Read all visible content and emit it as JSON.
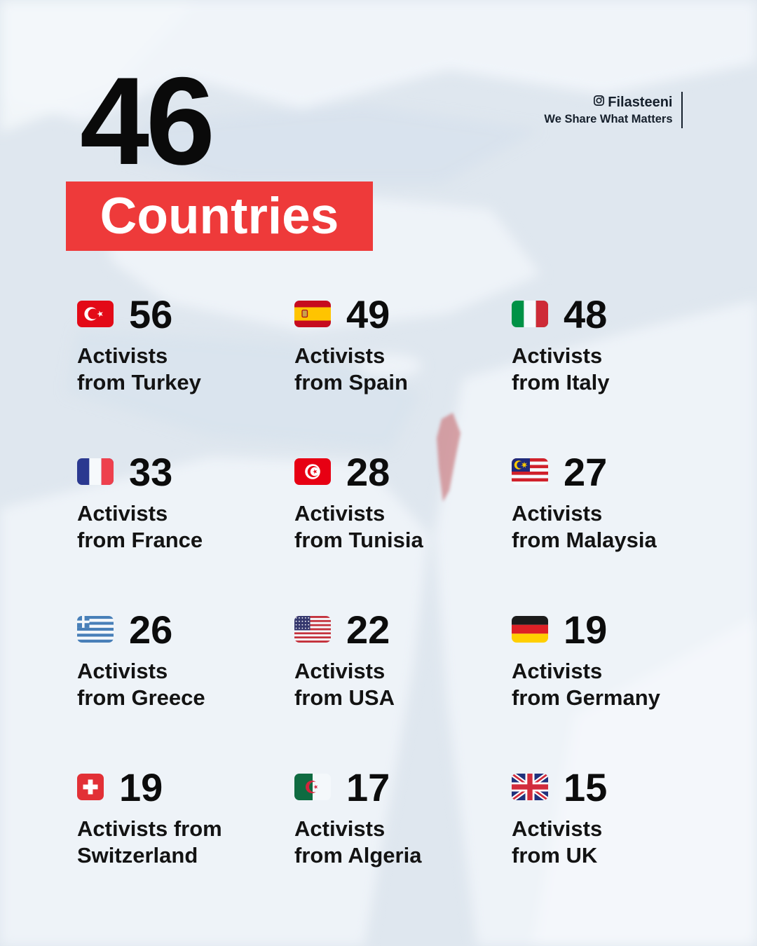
{
  "page": {
    "background_color": "#e0e8f0",
    "accent_red": "#ee3a3a",
    "palestine_highlight_color": "#cf8b90"
  },
  "header": {
    "count": "46",
    "title": "Countries"
  },
  "branding": {
    "handle": "Filasteeni",
    "tagline": "We Share What Matters"
  },
  "grid": {
    "items": [
      {
        "key": "turkey",
        "flag": "turkey-flag-icon",
        "count": "56",
        "lines": [
          "Activists",
          "from Turkey"
        ]
      },
      {
        "key": "spain",
        "flag": "spain-flag-icon",
        "count": "49",
        "lines": [
          "Activists",
          "from Spain"
        ]
      },
      {
        "key": "italy",
        "flag": "italy-flag-icon",
        "count": "48",
        "lines": [
          "Activists",
          "from Italy"
        ]
      },
      {
        "key": "france",
        "flag": "france-flag-icon",
        "count": "33",
        "lines": [
          "Activists",
          "from France"
        ]
      },
      {
        "key": "tunisia",
        "flag": "tunisia-flag-icon",
        "count": "28",
        "lines": [
          "Activists",
          "from Tunisia"
        ]
      },
      {
        "key": "malaysia",
        "flag": "malaysia-flag-icon",
        "count": "27",
        "lines": [
          "Activists",
          "from Malaysia"
        ]
      },
      {
        "key": "greece",
        "flag": "greece-flag-icon",
        "count": "26",
        "lines": [
          "Activists",
          "from Greece"
        ]
      },
      {
        "key": "usa",
        "flag": "usa-flag-icon",
        "count": "22",
        "lines": [
          "Activists",
          "from USA"
        ]
      },
      {
        "key": "germany",
        "flag": "germany-flag-icon",
        "count": "19",
        "lines": [
          "Activists",
          "from Germany"
        ]
      },
      {
        "key": "switzerland",
        "flag": "switzerland-flag-icon",
        "count": "19",
        "lines": [
          "Activists from",
          "Switzerland"
        ]
      },
      {
        "key": "algeria",
        "flag": "algeria-flag-icon",
        "count": "17",
        "lines": [
          "Activists",
          "from Algeria"
        ]
      },
      {
        "key": "uk",
        "flag": "uk-flag-icon",
        "count": "15",
        "lines": [
          "Activists",
          "from UK"
        ]
      }
    ]
  },
  "chart_data": {
    "type": "table",
    "title": "46 Countries",
    "categories": [
      "Turkey",
      "Spain",
      "Italy",
      "France",
      "Tunisia",
      "Malaysia",
      "Greece",
      "USA",
      "Germany",
      "Switzerland",
      "Algeria",
      "UK"
    ],
    "values": [
      56,
      49,
      48,
      33,
      28,
      27,
      26,
      22,
      19,
      19,
      17,
      15
    ],
    "ylabel": "Activists"
  }
}
